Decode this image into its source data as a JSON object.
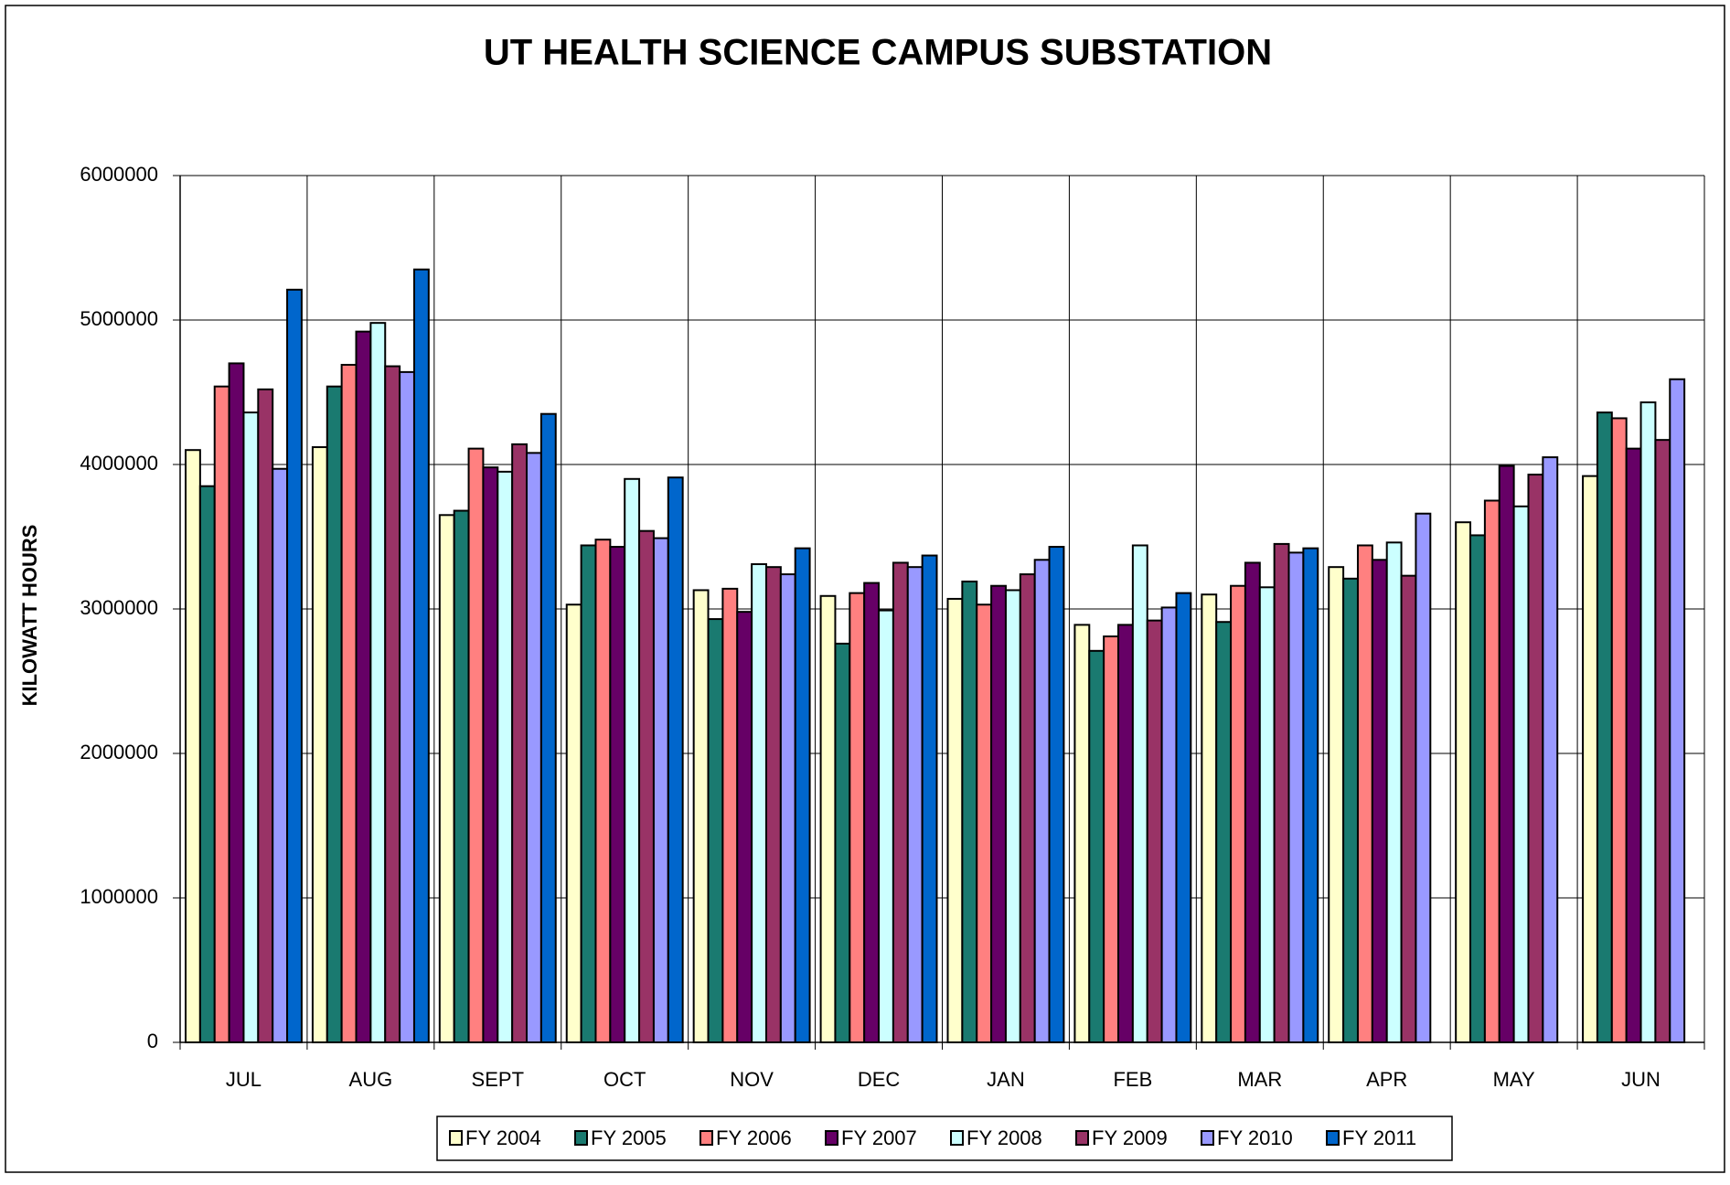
{
  "chart_data": {
    "type": "bar",
    "title": "UT HEALTH SCIENCE CAMPUS SUBSTATION",
    "y_label": "KILOWATT HOURS",
    "categories": [
      "JUL",
      "AUG",
      "SEPT",
      "OCT",
      "NOV",
      "DEC",
      "JAN",
      "FEB",
      "MAR",
      "APR",
      "MAY",
      "JUN"
    ],
    "series": [
      {
        "name": "FY 2004",
        "color": "#ffffcc",
        "values": [
          4100000,
          4120000,
          3650000,
          3030000,
          3130000,
          3090000,
          3070000,
          2890000,
          3100000,
          3290000,
          3600000,
          3920000
        ]
      },
      {
        "name": "FY 2005",
        "color": "#1a7a70",
        "values": [
          3850000,
          4540000,
          3680000,
          3440000,
          2930000,
          2760000,
          3190000,
          2710000,
          2910000,
          3210000,
          3510000,
          4360000
        ]
      },
      {
        "name": "FY 2006",
        "color": "#ff8080",
        "values": [
          4540000,
          4690000,
          4110000,
          3480000,
          3140000,
          3110000,
          3030000,
          2810000,
          3160000,
          3440000,
          3750000,
          4320000
        ]
      },
      {
        "name": "FY 2007",
        "color": "#660066",
        "values": [
          4700000,
          4920000,
          3980000,
          3430000,
          2980000,
          3180000,
          3160000,
          2890000,
          3320000,
          3340000,
          3990000,
          4110000
        ]
      },
      {
        "name": "FY 2008",
        "color": "#ccffff",
        "values": [
          4360000,
          4980000,
          3950000,
          3900000,
          3310000,
          2990000,
          3130000,
          3440000,
          3150000,
          3460000,
          3710000,
          4430000
        ]
      },
      {
        "name": "FY 2009",
        "color": "#993366",
        "values": [
          4520000,
          4680000,
          4140000,
          3540000,
          3290000,
          3320000,
          3240000,
          2920000,
          3450000,
          3230000,
          3930000,
          4170000
        ]
      },
      {
        "name": "FY 2010",
        "color": "#9999ff",
        "values": [
          3970000,
          4640000,
          4080000,
          3490000,
          3240000,
          3290000,
          3340000,
          3010000,
          3390000,
          3660000,
          4050000,
          4590000
        ]
      },
      {
        "name": "FY 2011",
        "color": "#0066cc",
        "values": [
          5210000,
          5350000,
          4350000,
          3910000,
          3420000,
          3370000,
          3430000,
          3110000,
          3420000,
          null,
          null,
          null
        ]
      }
    ],
    "ylim": [
      0,
      6000000
    ],
    "yticks": [
      0,
      1000000,
      2000000,
      3000000,
      4000000,
      5000000,
      6000000
    ],
    "grid": true
  }
}
